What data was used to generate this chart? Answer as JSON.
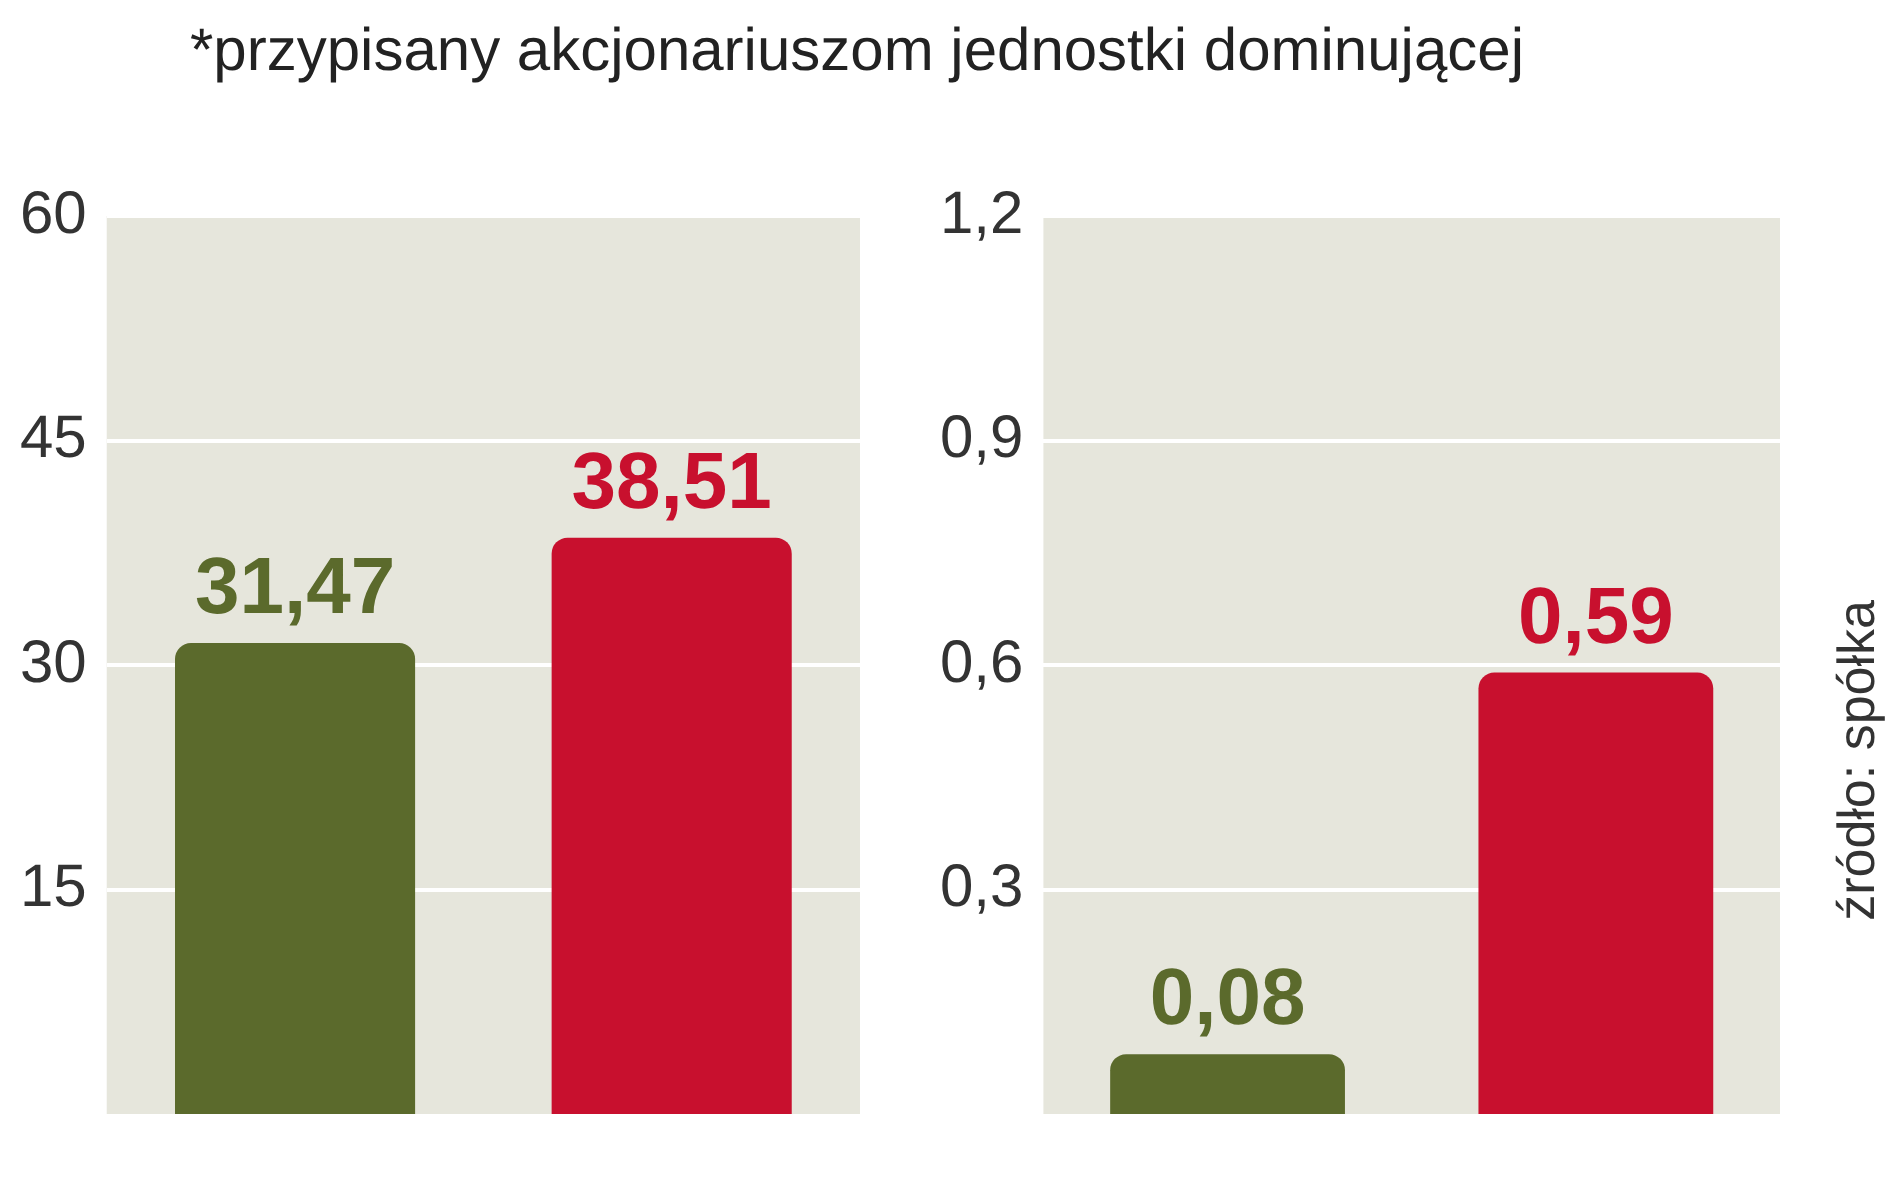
{
  "chart_data": [
    {
      "type": "bar",
      "categories": [
        null,
        null
      ],
      "series": [
        {
          "colors": [
            "#5b6a2c",
            "#c8102e"
          ],
          "values": [
            31.47,
            38.51
          ],
          "value_labels": [
            "31,47",
            "38,51"
          ]
        }
      ],
      "ylim": [
        0,
        60
      ],
      "yticks": [
        15,
        30,
        45,
        60
      ],
      "grid": "y",
      "legend": false,
      "annotations": [
        "*przypisany akcjonariuszom jednostki dominującej"
      ]
    },
    {
      "type": "bar",
      "categories": [
        null,
        null
      ],
      "series": [
        {
          "colors": [
            "#5b6a2c",
            "#c8102e"
          ],
          "values": [
            0.08,
            0.59
          ],
          "value_labels": [
            "0,08",
            "0,59"
          ]
        }
      ],
      "ylim": [
        0,
        1.2
      ],
      "yticks": [
        {
          "value": 0.3,
          "label": "0,3"
        },
        {
          "value": 0.6,
          "label": "0,6"
        },
        {
          "value": 0.9,
          "label": "0,9"
        },
        {
          "value": 1.2,
          "label": "1,2"
        }
      ],
      "grid": "y",
      "legend": false,
      "annotations": [
        "źródło: spółka"
      ]
    }
  ]
}
